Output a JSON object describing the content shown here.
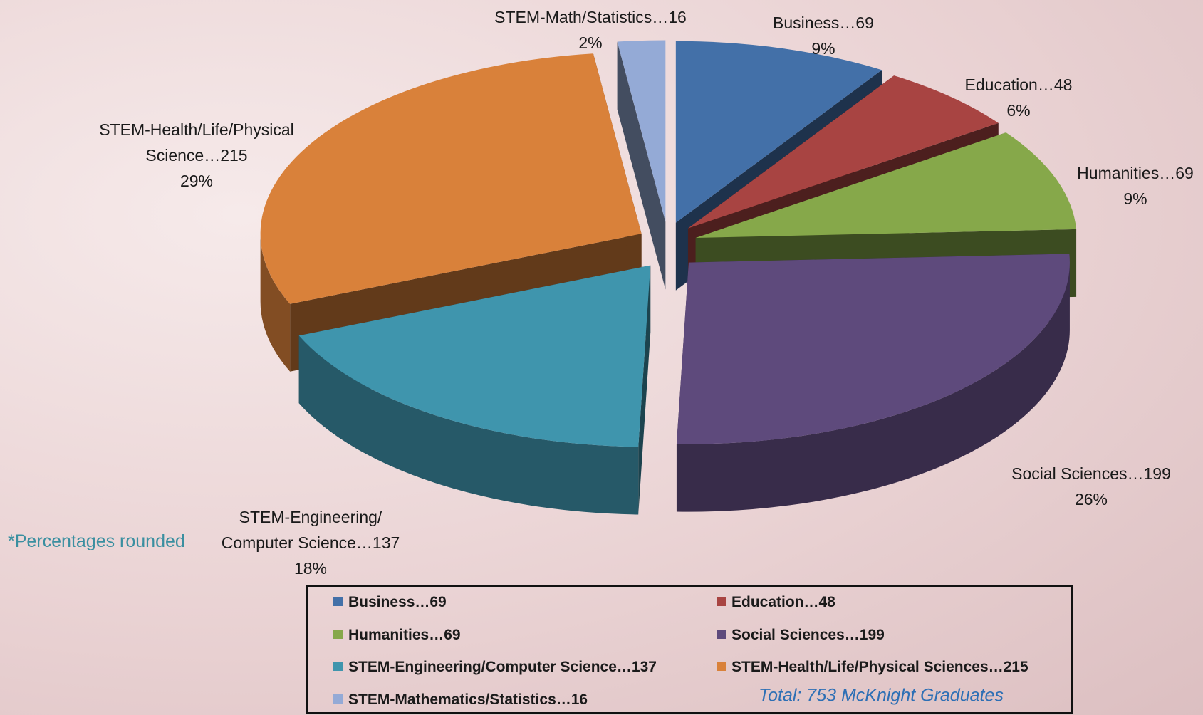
{
  "chart_data": {
    "type": "pie",
    "categories": [
      "Business…69",
      "Education…48",
      "Humanities…69",
      "Social Sciences…199",
      "STEM-Engineering/Computer Science…137",
      "STEM-Health/Life/Physical Sciences…215",
      "STEM-Mathematics/Statistics…16"
    ],
    "slice_labels": [
      "Business…69",
      "Education…48",
      "Humanities…69",
      "Social Sciences…199",
      "STEM-Engineering/ Computer Science…137",
      "STEM-Health/Life/Physical Science…215",
      "STEM-Math/Statistics…16"
    ],
    "values": [
      9,
      6,
      9,
      26,
      18,
      29,
      2
    ],
    "value_labels": [
      "9%",
      "6%",
      "9%",
      "26%",
      "18%",
      "29%",
      "2%"
    ],
    "colors": [
      "#4370a8",
      "#a84442",
      "#86a84a",
      "#5e4a7c",
      "#3f95ad",
      "#d9813a",
      "#94aad6"
    ],
    "note": "*Percentages rounded",
    "total_label": "Total: 753 McKnight Graduates"
  }
}
